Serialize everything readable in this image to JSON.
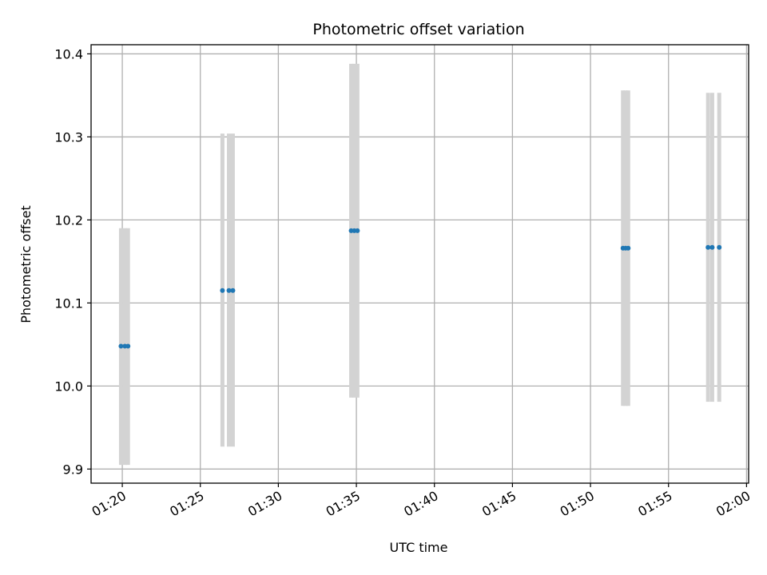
{
  "chart_data": {
    "type": "scatter",
    "title": "Photometric offset variation",
    "xlabel": "UTC time",
    "ylabel": "Photometric offset",
    "xlim": [
      "01:18:00",
      "02:00:08"
    ],
    "ylim": [
      9.883,
      10.411
    ],
    "grid": true,
    "x_ticks": [
      "01:20",
      "01:25",
      "01:30",
      "01:35",
      "01:40",
      "01:45",
      "01:50",
      "01:55",
      "02:00"
    ],
    "y_ticks": [
      "9.9",
      "10.0",
      "10.1",
      "10.2",
      "10.3",
      "10.4"
    ],
    "colors": {
      "points": "#1f77b4",
      "error_bars": "#d3d3d3",
      "grid": "#b0b0b0"
    },
    "points": [
      {
        "x": "01:19:55",
        "y": 10.048,
        "y_low": 9.905,
        "y_high": 10.19
      },
      {
        "x": "01:20:10",
        "y": 10.048,
        "y_low": 9.905,
        "y_high": 10.19
      },
      {
        "x": "01:20:22",
        "y": 10.048,
        "y_low": 9.905,
        "y_high": 10.19
      },
      {
        "x": "01:26:25",
        "y": 10.115,
        "y_low": 9.927,
        "y_high": 10.304
      },
      {
        "x": "01:26:50",
        "y": 10.115,
        "y_low": 9.927,
        "y_high": 10.304
      },
      {
        "x": "01:27:05",
        "y": 10.115,
        "y_low": 9.927,
        "y_high": 10.304
      },
      {
        "x": "01:34:40",
        "y": 10.187,
        "y_low": 9.986,
        "y_high": 10.388
      },
      {
        "x": "01:34:52",
        "y": 10.187,
        "y_low": 9.986,
        "y_high": 10.388
      },
      {
        "x": "01:35:04",
        "y": 10.187,
        "y_low": 9.986,
        "y_high": 10.388
      },
      {
        "x": "01:52:05",
        "y": 10.166,
        "y_low": 9.976,
        "y_high": 10.356
      },
      {
        "x": "01:52:15",
        "y": 10.166,
        "y_low": 9.976,
        "y_high": 10.356
      },
      {
        "x": "01:52:25",
        "y": 10.166,
        "y_low": 9.976,
        "y_high": 10.356
      },
      {
        "x": "01:57:32",
        "y": 10.167,
        "y_low": 9.981,
        "y_high": 10.353
      },
      {
        "x": "01:57:48",
        "y": 10.167,
        "y_low": 9.981,
        "y_high": 10.353
      },
      {
        "x": "01:58:15",
        "y": 10.167,
        "y_low": 9.981,
        "y_high": 10.353
      }
    ]
  }
}
